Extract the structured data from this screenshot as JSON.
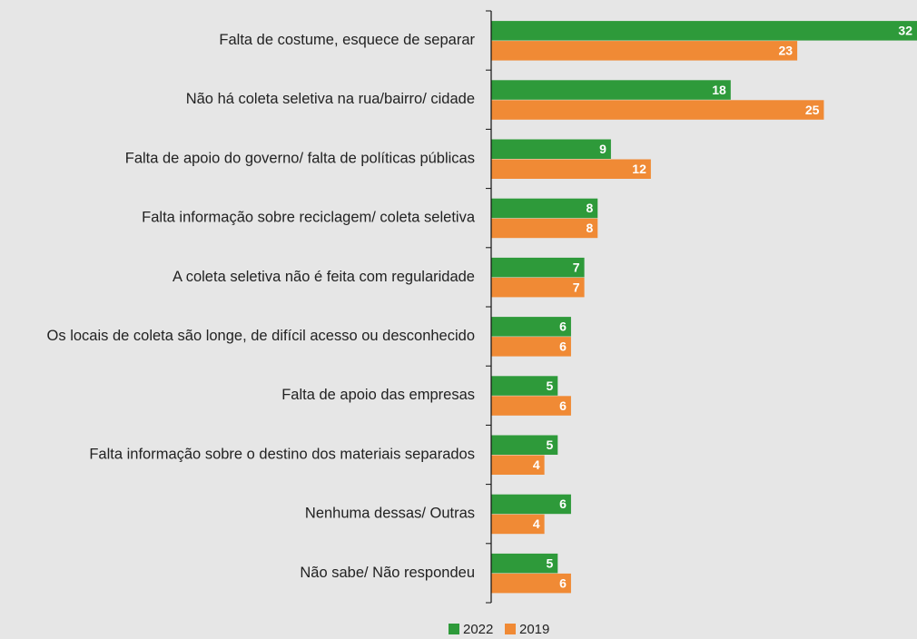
{
  "chart_data": {
    "type": "bar",
    "orientation": "horizontal",
    "categories": [
      "Falta de costume, esquece de separar",
      "Não há coleta seletiva na rua/bairro/ cidade",
      "Falta de apoio do governo/ falta de políticas públicas",
      "Falta informação sobre reciclagem/ coleta seletiva",
      "A coleta seletiva não é feita com regularidade",
      "Os locais de coleta são longe, de difícil acesso ou desconhecido",
      "Falta de apoio das empresas",
      "Falta informação sobre o destino dos materiais separados",
      "Nenhuma dessas/ Outras",
      "Não sabe/ Não respondeu"
    ],
    "series": [
      {
        "name": "2022",
        "color": "#2e9a3a",
        "values": [
          32,
          18,
          9,
          8,
          7,
          6,
          5,
          5,
          6,
          5
        ]
      },
      {
        "name": "2019",
        "color": "#f08a35",
        "values": [
          23,
          25,
          12,
          8,
          7,
          6,
          6,
          4,
          4,
          6
        ]
      }
    ],
    "legend": "bottom"
  }
}
